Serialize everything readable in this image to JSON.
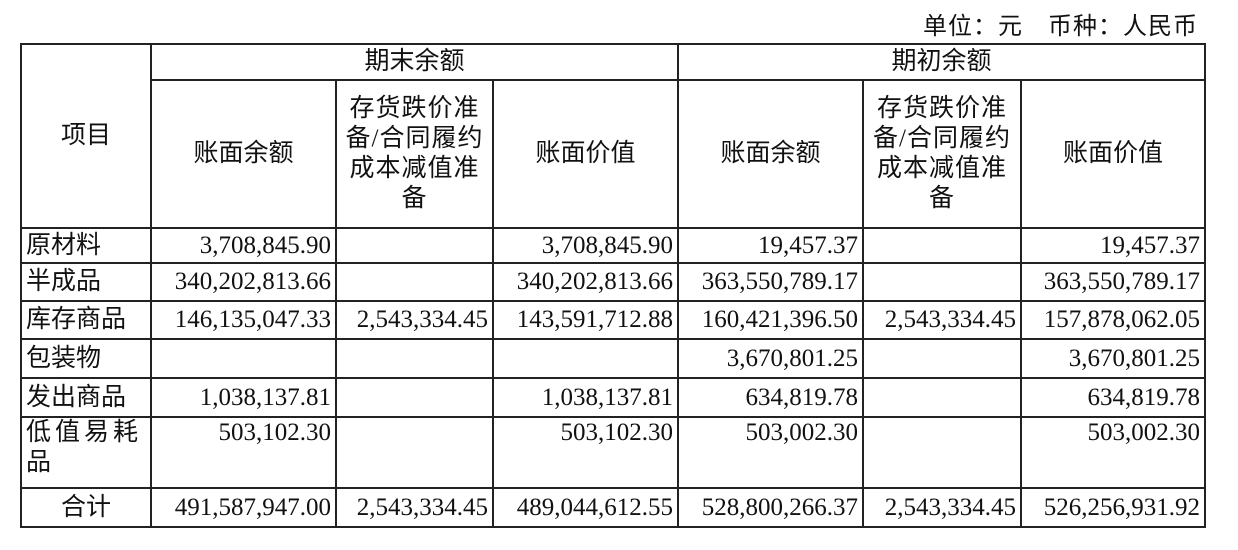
{
  "unit_note": "单位：元　币种：人民币",
  "header": {
    "item": "项目",
    "group_end": "期末余额",
    "group_begin": "期初余额",
    "book_balance": "账面余额",
    "provision": "存货跌价准备/合同履约成本减值准备",
    "book_value": "账面价值"
  },
  "rows": [
    {
      "item": "原材料",
      "end_balance": "3,708,845.90",
      "end_provision": "",
      "end_value": "3,708,845.90",
      "begin_balance": "19,457.37",
      "begin_provision": "",
      "begin_value": "19,457.37"
    },
    {
      "item": "半成品",
      "end_balance": "340,202,813.66",
      "end_provision": "",
      "end_value": "340,202,813.66",
      "begin_balance": "363,550,789.17",
      "begin_provision": "",
      "begin_value": "363,550,789.17"
    },
    {
      "item": "库存商品",
      "end_balance": "146,135,047.33",
      "end_provision": "2,543,334.45",
      "end_value": "143,591,712.88",
      "begin_balance": "160,421,396.50",
      "begin_provision": "2,543,334.45",
      "begin_value": "157,878,062.05"
    },
    {
      "item": "包装物",
      "end_balance": "",
      "end_provision": "",
      "end_value": "",
      "begin_balance": "3,670,801.25",
      "begin_provision": "",
      "begin_value": "3,670,801.25"
    },
    {
      "item": "发出商品",
      "end_balance": "1,038,137.81",
      "end_provision": "",
      "end_value": "1,038,137.81",
      "begin_balance": "634,819.78",
      "begin_provision": "",
      "begin_value": "634,819.78"
    },
    {
      "item": "低值易耗品",
      "end_balance": "503,102.30",
      "end_provision": "",
      "end_value": "503,102.30",
      "begin_balance": "503,002.30",
      "begin_provision": "",
      "begin_value": "503,002.30"
    }
  ],
  "total": {
    "item": "合计",
    "end_balance": "491,587,947.00",
    "end_provision": "2,543,334.45",
    "end_value": "489,044,612.55",
    "begin_balance": "528,800,266.37",
    "begin_provision": "2,543,334.45",
    "begin_value": "526,256,931.92"
  }
}
